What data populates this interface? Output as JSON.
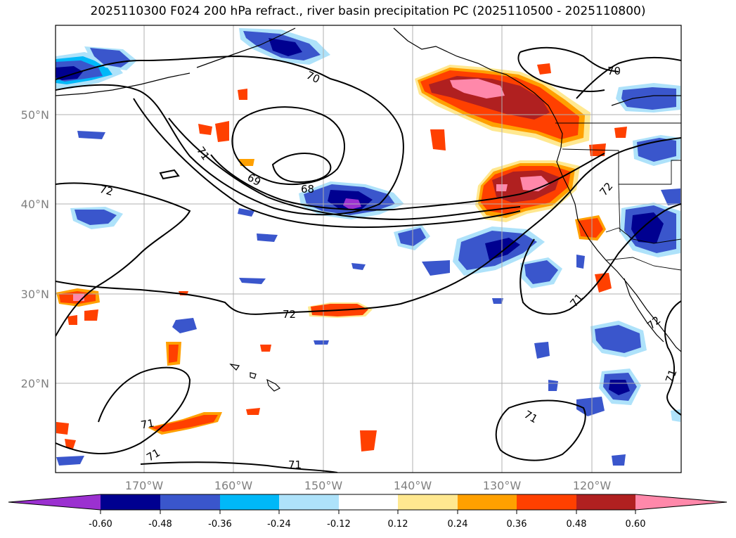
{
  "title": "2025110300 F024 200 hPa refract., river basin precipitation PC (2025110500 - 2025110800)",
  "map": {
    "lat_labels": [
      "50°N",
      "40°N",
      "30°N",
      "20°N"
    ],
    "lon_labels": [
      "170°W",
      "160°W",
      "150°W",
      "140°W",
      "130°W",
      "120°W"
    ],
    "contour_labels": [
      "70",
      "70",
      "71",
      "69",
      "68",
      "72",
      "72",
      "72",
      "71",
      "72",
      "71",
      "71",
      "71",
      "71",
      "71"
    ]
  },
  "colorbar": {
    "ticks": [
      "-0.60",
      "-0.48",
      "-0.36",
      "-0.24",
      "-0.12",
      "0.12",
      "0.24",
      "0.36",
      "0.48",
      "0.60"
    ],
    "colors": [
      "#9b30d0",
      "#000090",
      "#3a56cc",
      "#00b8f8",
      "#aee2fa",
      "#ffffff",
      "#ffe890",
      "#ffa000",
      "#ff4000",
      "#b02020",
      "#ff88aa"
    ]
  },
  "colors": {
    "purple": "#9b30d0",
    "navy": "#000090",
    "blue": "#3a56cc",
    "cyan": "#00b8f8",
    "lightblue": "#aee2fa",
    "yellow": "#ffe890",
    "orange": "#ffa000",
    "redorange": "#ff4000",
    "darkred": "#b02020",
    "pink": "#ff88aa"
  }
}
